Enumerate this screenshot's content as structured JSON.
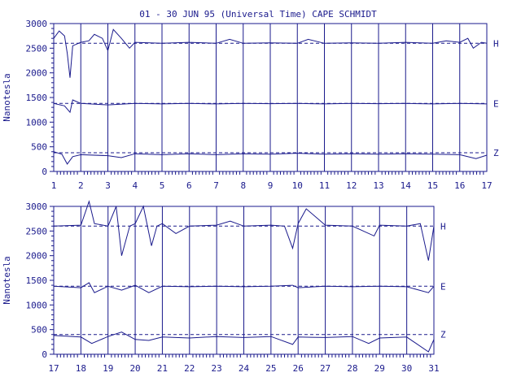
{
  "chart_data": {
    "type": "line",
    "title": "01 - 30 JUN 95 (Universal Time) CAPE SCHMIDT",
    "ylabel": "Nanotesla",
    "colors": {
      "data": "#1a1a8c",
      "grid": "#1a1a8c",
      "background": "#ffffff"
    },
    "panels": [
      {
        "xlim": [
          1,
          17
        ],
        "ylim": [
          0,
          3000
        ],
        "x_ticks": [
          1,
          2,
          3,
          4,
          5,
          6,
          7,
          8,
          9,
          10,
          11,
          12,
          13,
          14,
          15,
          16,
          17
        ],
        "y_ticks": [
          0,
          500,
          1000,
          1500,
          2000,
          2500,
          3000
        ],
        "series": [
          {
            "name": "H",
            "baseline": 2600,
            "points": [
              [
                1.0,
                2700
              ],
              [
                1.2,
                2850
              ],
              [
                1.4,
                2750
              ],
              [
                1.5,
                2400
              ],
              [
                1.6,
                1900
              ],
              [
                1.7,
                2550
              ],
              [
                2.0,
                2620
              ],
              [
                2.3,
                2650
              ],
              [
                2.5,
                2780
              ],
              [
                2.8,
                2700
              ],
              [
                3.0,
                2450
              ],
              [
                3.2,
                2880
              ],
              [
                3.5,
                2700
              ],
              [
                3.8,
                2500
              ],
              [
                4.0,
                2620
              ],
              [
                5.0,
                2600
              ],
              [
                6.0,
                2620
              ],
              [
                7.0,
                2600
              ],
              [
                7.5,
                2680
              ],
              [
                8.0,
                2600
              ],
              [
                9.0,
                2610
              ],
              [
                10.0,
                2600
              ],
              [
                10.4,
                2680
              ],
              [
                11.0,
                2600
              ],
              [
                12.0,
                2610
              ],
              [
                13.0,
                2600
              ],
              [
                14.0,
                2620
              ],
              [
                15.0,
                2600
              ],
              [
                15.5,
                2650
              ],
              [
                16.0,
                2620
              ],
              [
                16.3,
                2700
              ],
              [
                16.5,
                2500
              ],
              [
                16.8,
                2620
              ],
              [
                17.0,
                2600
              ]
            ]
          },
          {
            "name": "E",
            "baseline": 1380,
            "points": [
              [
                1.0,
                1380
              ],
              [
                1.4,
                1330
              ],
              [
                1.6,
                1200
              ],
              [
                1.7,
                1450
              ],
              [
                2.0,
                1380
              ],
              [
                3.0,
                1350
              ],
              [
                4.0,
                1380
              ],
              [
                5.0,
                1370
              ],
              [
                6.0,
                1380
              ],
              [
                7.0,
                1370
              ],
              [
                8.0,
                1380
              ],
              [
                9.0,
                1375
              ],
              [
                10.0,
                1380
              ],
              [
                11.0,
                1370
              ],
              [
                12.0,
                1380
              ],
              [
                13.0,
                1375
              ],
              [
                14.0,
                1380
              ],
              [
                15.0,
                1370
              ],
              [
                16.0,
                1380
              ],
              [
                17.0,
                1370
              ]
            ]
          },
          {
            "name": "Z",
            "baseline": 380,
            "points": [
              [
                1.0,
                400
              ],
              [
                1.3,
                350
              ],
              [
                1.5,
                150
              ],
              [
                1.7,
                300
              ],
              [
                2.0,
                340
              ],
              [
                3.0,
                320
              ],
              [
                3.5,
                280
              ],
              [
                4.0,
                360
              ],
              [
                5.0,
                340
              ],
              [
                6.0,
                360
              ],
              [
                7.0,
                340
              ],
              [
                8.0,
                360
              ],
              [
                9.0,
                350
              ],
              [
                10.0,
                370
              ],
              [
                11.0,
                350
              ],
              [
                12.0,
                360
              ],
              [
                13.0,
                350
              ],
              [
                14.0,
                360
              ],
              [
                15.0,
                350
              ],
              [
                16.0,
                340
              ],
              [
                16.6,
                260
              ],
              [
                17.0,
                330
              ]
            ]
          }
        ]
      },
      {
        "xlim": [
          17,
          31
        ],
        "ylim": [
          0,
          3000
        ],
        "x_ticks": [
          17,
          18,
          19,
          20,
          21,
          22,
          23,
          24,
          25,
          26,
          27,
          28,
          29,
          30,
          31
        ],
        "y_ticks": [
          0,
          500,
          1000,
          1500,
          2000,
          2500,
          3000
        ],
        "series": [
          {
            "name": "H",
            "baseline": 2600,
            "points": [
              [
                17.0,
                2600
              ],
              [
                18.0,
                2620
              ],
              [
                18.3,
                3100
              ],
              [
                18.5,
                2650
              ],
              [
                19.0,
                2600
              ],
              [
                19.3,
                3000
              ],
              [
                19.5,
                2000
              ],
              [
                19.8,
                2600
              ],
              [
                20.0,
                2650
              ],
              [
                20.3,
                3000
              ],
              [
                20.6,
                2200
              ],
              [
                20.8,
                2600
              ],
              [
                21.0,
                2650
              ],
              [
                21.5,
                2450
              ],
              [
                22.0,
                2600
              ],
              [
                23.0,
                2620
              ],
              [
                23.5,
                2700
              ],
              [
                24.0,
                2600
              ],
              [
                25.0,
                2620
              ],
              [
                25.5,
                2600
              ],
              [
                25.8,
                2150
              ],
              [
                26.0,
                2650
              ],
              [
                26.3,
                2950
              ],
              [
                27.0,
                2620
              ],
              [
                28.0,
                2600
              ],
              [
                28.8,
                2400
              ],
              [
                29.0,
                2620
              ],
              [
                30.0,
                2600
              ],
              [
                30.5,
                2650
              ],
              [
                30.8,
                1900
              ],
              [
                31.0,
                2600
              ]
            ]
          },
          {
            "name": "E",
            "baseline": 1380,
            "points": [
              [
                17.0,
                1380
              ],
              [
                18.0,
                1350
              ],
              [
                18.3,
                1450
              ],
              [
                18.5,
                1250
              ],
              [
                19.0,
                1380
              ],
              [
                19.5,
                1300
              ],
              [
                20.0,
                1400
              ],
              [
                20.5,
                1250
              ],
              [
                21.0,
                1380
              ],
              [
                22.0,
                1370
              ],
              [
                23.0,
                1380
              ],
              [
                24.0,
                1370
              ],
              [
                25.0,
                1380
              ],
              [
                25.8,
                1400
              ],
              [
                26.0,
                1350
              ],
              [
                27.0,
                1380
              ],
              [
                28.0,
                1370
              ],
              [
                29.0,
                1380
              ],
              [
                30.0,
                1370
              ],
              [
                30.8,
                1250
              ],
              [
                31.0,
                1380
              ]
            ]
          },
          {
            "name": "Z",
            "baseline": 400,
            "points": [
              [
                17.0,
                380
              ],
              [
                18.0,
                350
              ],
              [
                18.4,
                220
              ],
              [
                19.0,
                360
              ],
              [
                19.5,
                450
              ],
              [
                20.0,
                300
              ],
              [
                20.5,
                280
              ],
              [
                21.0,
                350
              ],
              [
                22.0,
                330
              ],
              [
                23.0,
                360
              ],
              [
                24.0,
                340
              ],
              [
                25.0,
                360
              ],
              [
                25.8,
                200
              ],
              [
                26.0,
                350
              ],
              [
                27.0,
                340
              ],
              [
                28.0,
                360
              ],
              [
                28.6,
                220
              ],
              [
                29.0,
                330
              ],
              [
                30.0,
                350
              ],
              [
                30.8,
                50
              ],
              [
                31.0,
                300
              ]
            ]
          }
        ]
      }
    ]
  }
}
